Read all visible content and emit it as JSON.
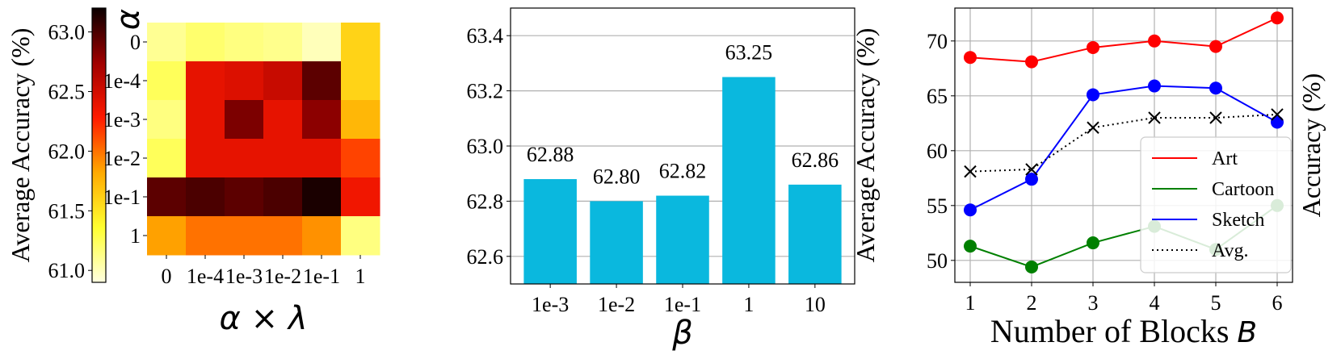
{
  "chart_data": [
    {
      "type": "heatmap",
      "ylabel": "α",
      "xlabel": "α × λ",
      "x_categories": [
        "0",
        "1e-4",
        "1e-3",
        "1e-2",
        "1e-1",
        "1"
      ],
      "y_categories": [
        "0",
        "1e-4",
        "1e-3",
        "1e-2",
        "1e-1",
        "1"
      ],
      "values": [
        [
          61.1,
          61.2,
          61.15,
          61.12,
          61.0,
          61.6
        ],
        [
          61.25,
          62.4,
          62.45,
          62.55,
          62.95,
          61.6
        ],
        [
          61.15,
          62.4,
          62.85,
          62.4,
          62.8,
          61.75
        ],
        [
          61.25,
          62.4,
          62.4,
          62.4,
          62.4,
          62.15
        ],
        [
          62.95,
          63.0,
          62.95,
          63.0,
          63.15,
          62.35
        ],
        [
          61.85,
          62.0,
          62.0,
          62.0,
          61.9,
          61.15
        ]
      ],
      "colorbar": {
        "label": "Average Accuracy (%)",
        "ticks": [
          "61.0",
          "61.5",
          "62.0",
          "62.5",
          "63.0"
        ],
        "range": [
          60.9,
          63.2
        ],
        "colormap": "hot_r"
      }
    },
    {
      "type": "bar",
      "categories": [
        "1e-3",
        "1e-2",
        "1e-1",
        "1",
        "10"
      ],
      "values": [
        62.88,
        62.8,
        62.82,
        63.25,
        62.86
      ],
      "value_labels": [
        "62.88",
        "62.80",
        "62.82",
        "63.25",
        "62.86"
      ],
      "xlabel": "β",
      "ylabel": "Average Accuracy (%)",
      "ylim": [
        62.5,
        63.5
      ],
      "yticks": [
        "62.6",
        "62.8",
        "63.0",
        "63.2",
        "63.4"
      ],
      "color": "#0ab8de",
      "grid": "y"
    },
    {
      "type": "line",
      "x": [
        1,
        2,
        3,
        4,
        5,
        6
      ],
      "xticks": [
        "1",
        "2",
        "3",
        "4",
        "5",
        "6"
      ],
      "xlabel_text": "Number of Blocks",
      "xlabel_symbol": "B",
      "ylabel": "Accuracy (%)",
      "ylim": [
        48,
        73
      ],
      "yticks": [
        "50",
        "55",
        "60",
        "65",
        "70"
      ],
      "grid": true,
      "legend_position": "right",
      "series": [
        {
          "name": "Art",
          "values": [
            68.5,
            68.1,
            69.4,
            70.0,
            69.5,
            72.1
          ],
          "color": "#ff0000",
          "style": "solid",
          "marker": "circle"
        },
        {
          "name": "Cartoon",
          "values": [
            51.3,
            49.4,
            51.6,
            53.1,
            51.0,
            55.0
          ],
          "color": "#008000",
          "style": "solid",
          "marker": "circle"
        },
        {
          "name": "Sketch",
          "values": [
            54.6,
            57.4,
            65.1,
            65.9,
            65.7,
            62.6
          ],
          "color": "#0000ff",
          "style": "solid",
          "marker": "circle"
        },
        {
          "name": "Avg.",
          "values": [
            58.1,
            58.3,
            62.1,
            63.0,
            63.0,
            63.3
          ],
          "color": "#000000",
          "style": "dotted",
          "marker": "x"
        }
      ]
    }
  ]
}
